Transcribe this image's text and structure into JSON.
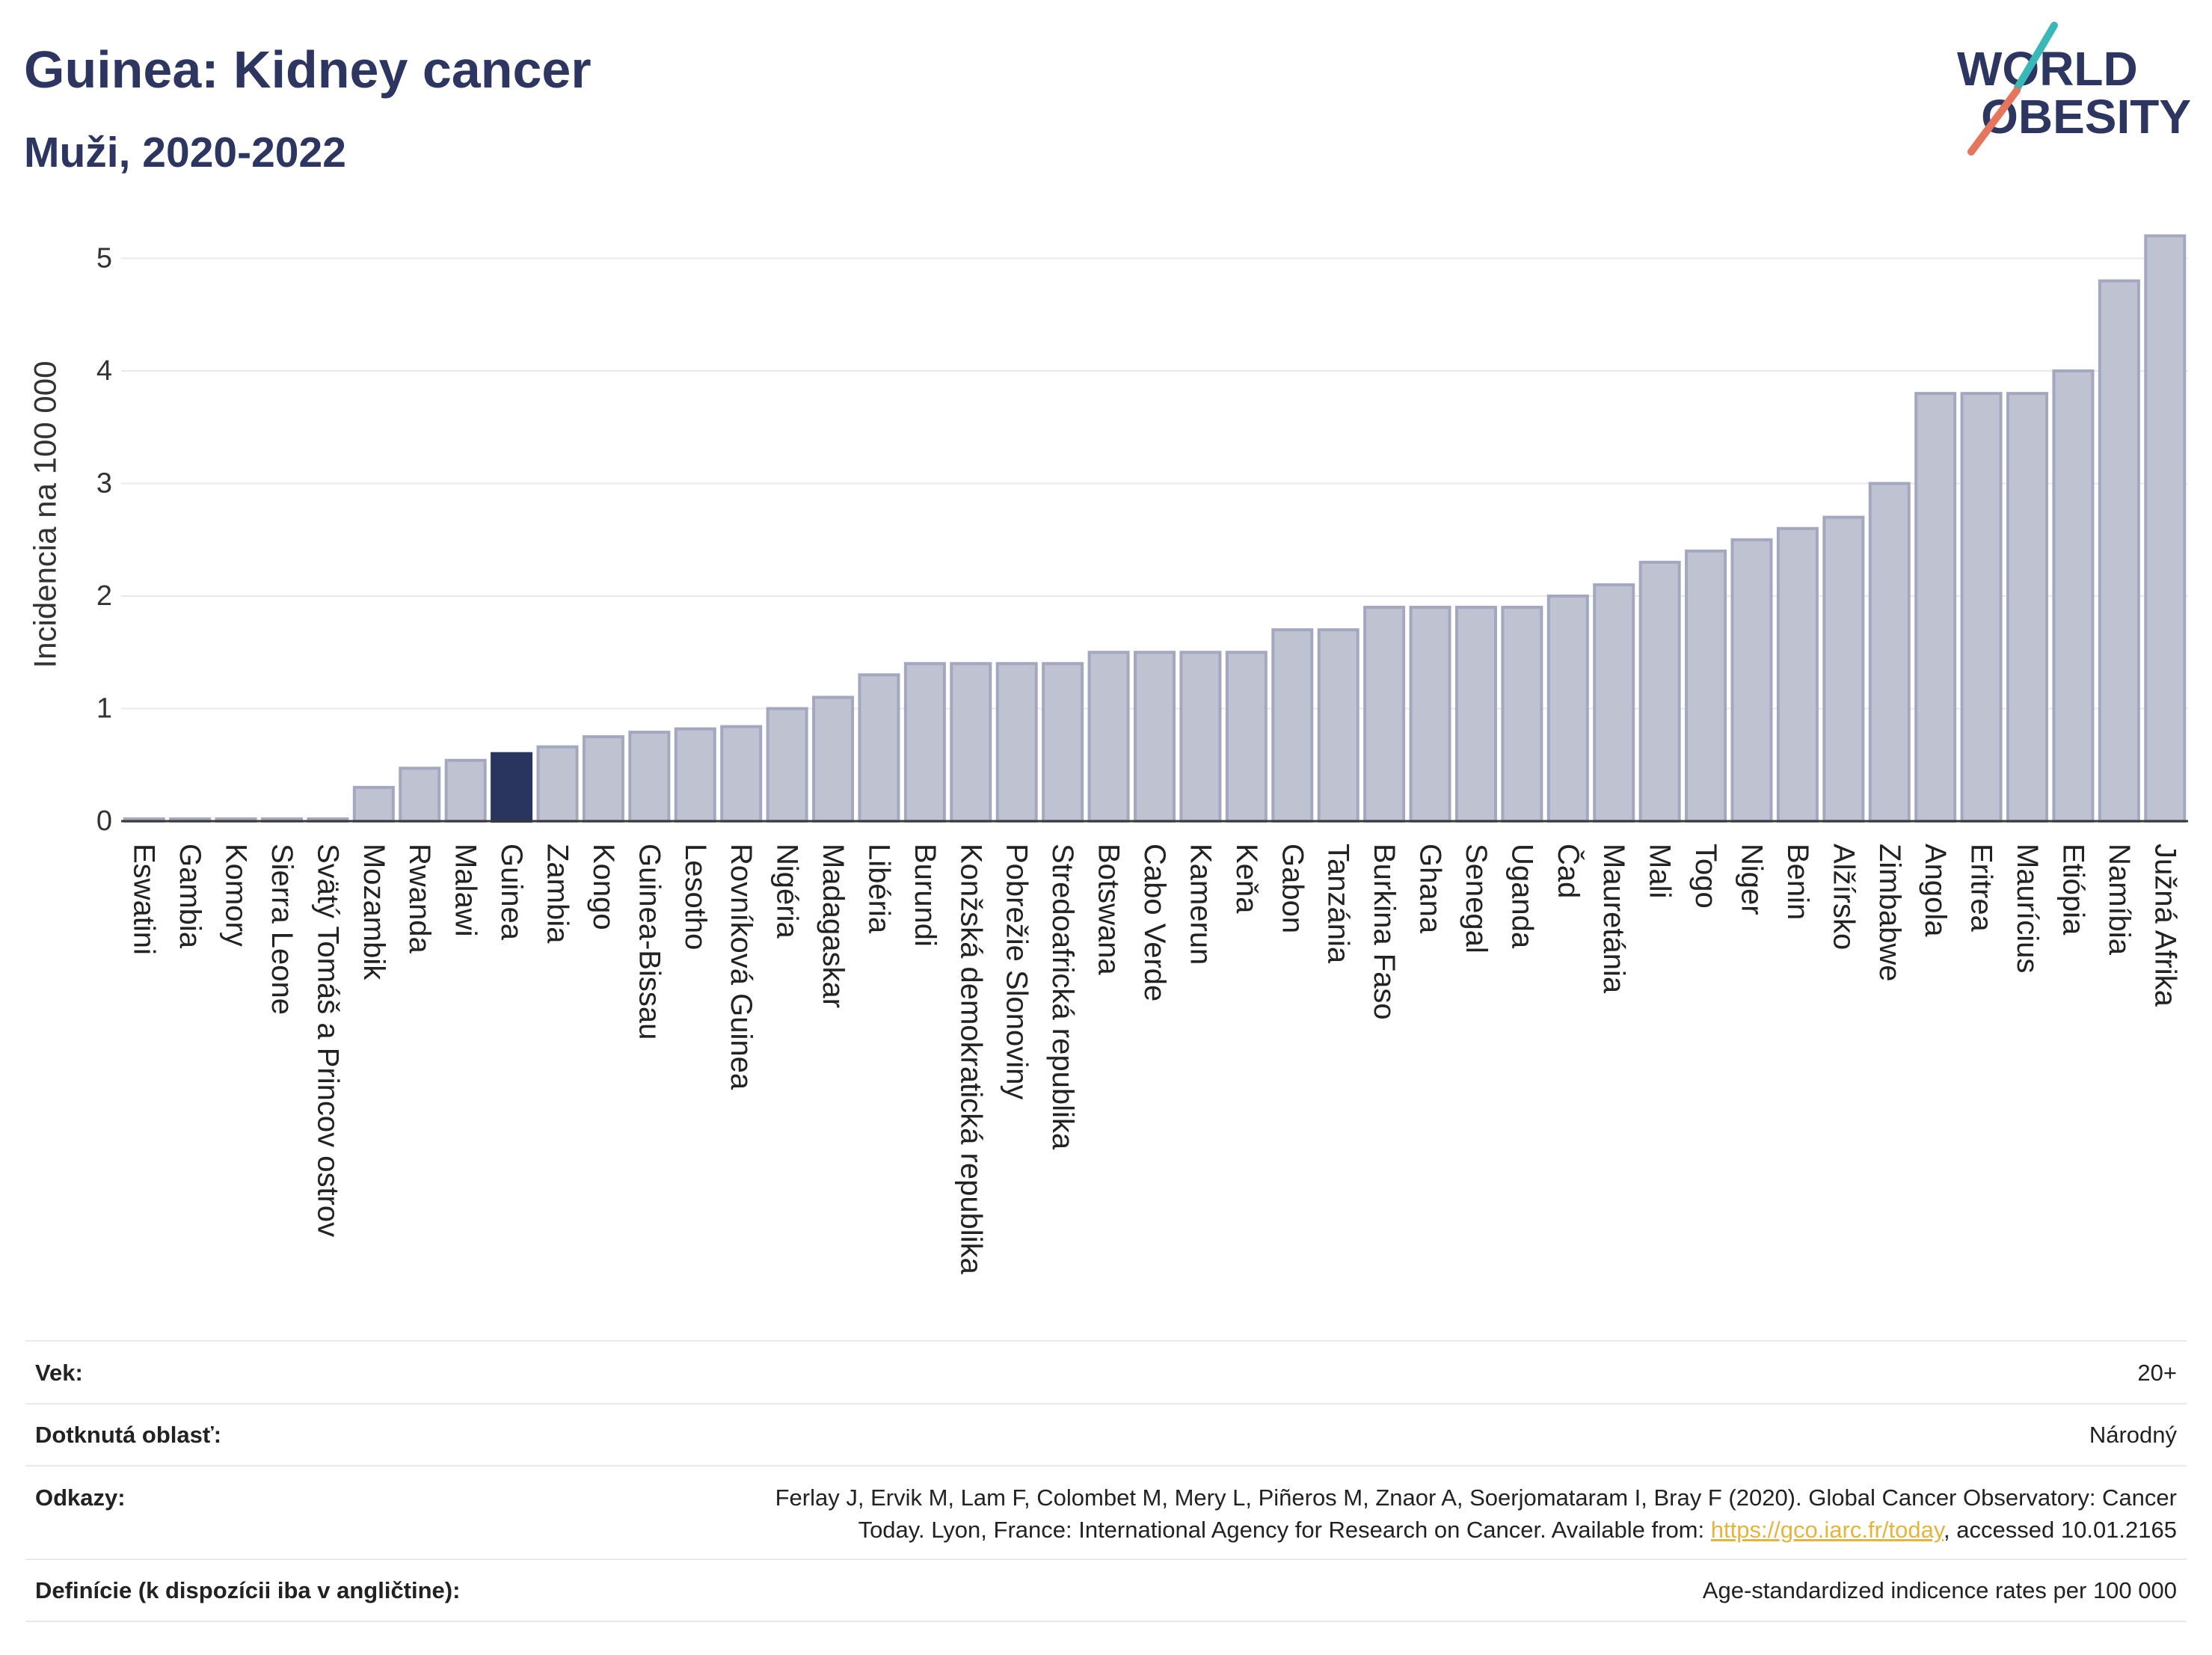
{
  "chart_data": {
    "type": "bar",
    "title": "Guinea: Kidney cancer",
    "subtitle": "Muži, 2020-2022",
    "xlabel": "",
    "ylabel": "Incidencia na 100 000",
    "ylim": [
      0,
      5.4
    ],
    "yticks": [
      0,
      1,
      2,
      3,
      4,
      5
    ],
    "grid": true,
    "show_legend": false,
    "categories": [
      "Eswatini",
      "Gambia",
      "Komory",
      "Sierra Leone",
      "Svätý Tomáš a Princov ostrov",
      "Mozambik",
      "Rwanda",
      "Malawi",
      "Guinea",
      "Zambia",
      "Kongo",
      "Guinea-Bissau",
      "Lesotho",
      "Rovníková Guinea",
      "Nigéria",
      "Madagaskar",
      "Libéria",
      "Burundi",
      "Konžská demokratická republika",
      "Pobrežie Slonoviny",
      "Stredoafrická republika",
      "Botswana",
      "Cabo Verde",
      "Kamerun",
      "Keňa",
      "Gabon",
      "Tanzánia",
      "Burkina Faso",
      "Ghana",
      "Senegal",
      "Uganda",
      "Čad",
      "Mauretánia",
      "Mali",
      "Togo",
      "Niger",
      "Benin",
      "Alžírsko",
      "Zimbabwe",
      "Angola",
      "Eritrea",
      "Maurícius",
      "Etiópia",
      "Namíbia",
      "Južná Afrika"
    ],
    "values": [
      0.02,
      0.02,
      0.02,
      0.02,
      0.02,
      0.3,
      0.47,
      0.54,
      0.6,
      0.66,
      0.75,
      0.79,
      0.82,
      0.84,
      1.0,
      1.1,
      1.3,
      1.4,
      1.4,
      1.4,
      1.4,
      1.5,
      1.5,
      1.5,
      1.5,
      1.7,
      1.7,
      1.9,
      1.9,
      1.9,
      1.9,
      2.0,
      2.1,
      2.3,
      2.4,
      2.5,
      2.6,
      2.7,
      3.0,
      3.8,
      3.8,
      3.8,
      4.0,
      4.8,
      5.2
    ],
    "highlight_index": 8,
    "colors": {
      "title": "#2c3661",
      "bar": "#bfc3d1",
      "bar_border": "#a3a8c0",
      "highlight": "#29345f",
      "grid": "#e8e9ee",
      "axis": "#3a3a3a"
    }
  },
  "logo": {
    "line1": "WORLD",
    "line2": "OBESITY",
    "colors": {
      "text": "#2c3661",
      "slash_top": "#3ab8b8",
      "slash_bottom": "#e5765d"
    }
  },
  "footer": {
    "age": {
      "label": "Vek:",
      "value": "20+"
    },
    "area": {
      "label": "Dotknutá oblasť:",
      "value": "Národný"
    },
    "references": {
      "label": "Odkazy:",
      "line1": "Ferlay J, Ervik M, Lam F, Colombet M, Mery L, Piñeros M, Znaor A, Soerjomataram I, Bray F (2020). Global Cancer Observatory: Cancer",
      "line2_before": "Today. Lyon, France: International Agency for Research on Cancer. Available from: ",
      "link": "https://gco.iarc.fr/today",
      "line2_after": ", accessed 10.01.2165"
    },
    "definitions": {
      "label": "Definície (k dispozícii iba v angličtine):",
      "value": "Age-standardized indicence rates per 100 000"
    },
    "colors": {
      "link": "#e3b53b",
      "divider": "#e7e9ee"
    }
  }
}
